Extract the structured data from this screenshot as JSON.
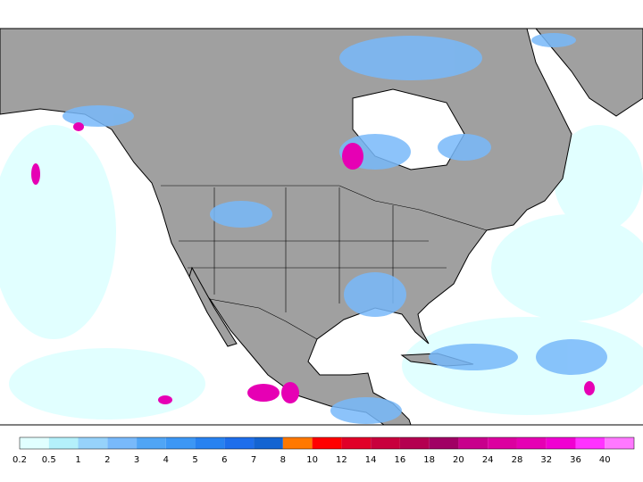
{
  "colorbar": {
    "levels": [
      0.2,
      0.5,
      1,
      2,
      3,
      4,
      5,
      6,
      7,
      8,
      10,
      12,
      14,
      16,
      18,
      20,
      24,
      28,
      32,
      36,
      40
    ],
    "colors": [
      "#e1ffff",
      "#b4f0fa",
      "#96d2fa",
      "#78b9fa",
      "#50a5f5",
      "#3c97f5",
      "#2882f0",
      "#1e6eeb",
      "#1464d2",
      "#ff7800",
      "#ff0000",
      "#e10028",
      "#c8003c",
      "#b40050",
      "#a00064",
      "#c8008c",
      "#dc00a0",
      "#e600b4",
      "#f000d2",
      "#ff32ff",
      "#ff78ff"
    ]
  }
}
